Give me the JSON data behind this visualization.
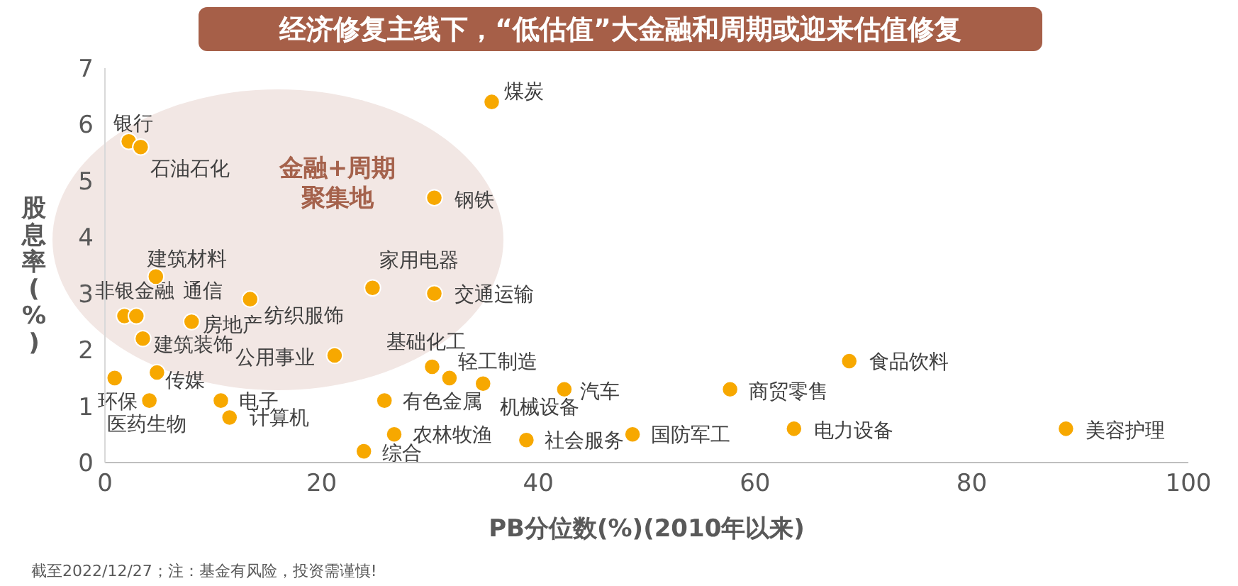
{
  "chart_data": {
    "type": "scatter",
    "title": "经济修复主线下，“低估值”大金融和周期或迎来估值修复",
    "xlabel": "PB分位数(%)(2010年以来)",
    "ylabel": "股息率(%)",
    "color": "#f7a800",
    "marker": "circle",
    "xlim": [
      0,
      100
    ],
    "xticks": [
      0,
      20,
      40,
      60,
      80,
      100
    ],
    "ylim": [
      0,
      7
    ],
    "yticks": [
      0,
      1,
      2,
      3,
      4,
      5,
      6,
      7
    ],
    "x": [
      2.2,
      3.3,
      35.7,
      30.4,
      24.7,
      30.4,
      4.7,
      13.4,
      1.8,
      2.9,
      8.0,
      3.5,
      21.2,
      30.2,
      31.8,
      34.9,
      42.4,
      25.8,
      26.7,
      23.9,
      38.9,
      48.7,
      68.7,
      57.7,
      63.6,
      88.7,
      0.9,
      4.8,
      4.1,
      10.7,
      11.5
    ],
    "values": [
      5.7,
      5.6,
      6.4,
      4.7,
      3.1,
      3.0,
      3.3,
      2.9,
      2.6,
      2.6,
      2.5,
      2.2,
      1.9,
      1.7,
      1.5,
      1.4,
      1.3,
      1.1,
      0.5,
      0.2,
      0.4,
      0.5,
      1.8,
      1.3,
      0.6,
      0.6,
      1.5,
      1.6,
      1.1,
      1.1,
      0.8
    ],
    "annotations": [
      "金融+周期",
      "聚集地",
      {
        "text": "银行",
        "x": 2.2,
        "y": 5.7
      },
      {
        "text": "石油石化",
        "x": 3.3,
        "y": 5.6
      },
      {
        "text": "煤炭",
        "x": 35.7,
        "y": 6.4
      },
      {
        "text": "钢铁",
        "x": 30.4,
        "y": 4.7
      },
      {
        "text": "家用电器",
        "x": 24.7,
        "y": 3.1
      },
      {
        "text": "交通运输",
        "x": 30.4,
        "y": 3.0
      },
      {
        "text": "建筑材料",
        "x": 4.7,
        "y": 3.3
      },
      {
        "text": "纺织服饰",
        "x": 13.4,
        "y": 2.9
      },
      {
        "text": "非银金融",
        "x": 1.8,
        "y": 2.6
      },
      {
        "text": "通信",
        "x": 2.9,
        "y": 2.6
      },
      {
        "text": "房地产",
        "x": 8.0,
        "y": 2.5
      },
      {
        "text": "建筑装饰",
        "x": 3.5,
        "y": 2.2
      },
      {
        "text": "公用事业",
        "x": 21.2,
        "y": 1.9
      },
      {
        "text": "基础化工",
        "x": 30.2,
        "y": 1.7
      },
      {
        "text": "轻工制造",
        "x": 31.8,
        "y": 1.5
      },
      {
        "text": "机械设备",
        "x": 34.9,
        "y": 1.4
      },
      {
        "text": "汽车",
        "x": 42.4,
        "y": 1.3
      },
      {
        "text": "有色金属",
        "x": 25.8,
        "y": 1.1
      },
      {
        "text": "农林牧渔",
        "x": 26.7,
        "y": 0.5
      },
      {
        "text": "综合",
        "x": 23.9,
        "y": 0.2
      },
      {
        "text": "社会服务",
        "x": 38.9,
        "y": 0.4
      },
      {
        "text": "国防军工",
        "x": 48.7,
        "y": 0.5
      },
      {
        "text": "食品饮料",
        "x": 68.7,
        "y": 1.8
      },
      {
        "text": "商贸零售",
        "x": 57.7,
        "y": 1.3
      },
      {
        "text": "电力设备",
        "x": 63.6,
        "y": 0.6
      },
      {
        "text": "美容护理",
        "x": 88.7,
        "y": 0.6
      },
      {
        "text": "环保",
        "x": 0.9,
        "y": 1.5
      },
      {
        "text": "传媒",
        "x": 4.8,
        "y": 1.6
      },
      {
        "text": "医药生物",
        "x": 4.1,
        "y": 1.1
      },
      {
        "text": "电子",
        "x": 10.7,
        "y": 1.1
      },
      {
        "text": "计算机",
        "x": 11.5,
        "y": 0.8
      },
      "截至2022/12/27；注：基金有风险，投资需谨慎!"
    ]
  }
}
